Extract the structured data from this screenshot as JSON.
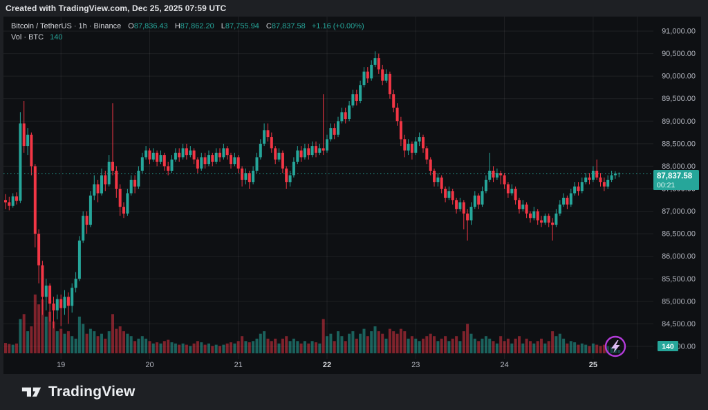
{
  "topbar": {
    "attribution": "Created with TradingView.com, Dec 25, 2025 07:59 UTC"
  },
  "legend": {
    "symbol": "Bitcoin / TetherUS",
    "interval": "1h",
    "exchange": "Binance",
    "separator": "·",
    "o_label": "O",
    "o_value": "87,836.43",
    "h_label": "H",
    "h_value": "87,862.20",
    "l_label": "L",
    "l_value": "87,755.94",
    "c_label": "C",
    "c_value": "87,837.58",
    "change": "+1.16 (+0.00%)",
    "volume_label": "Vol · BTC",
    "volume_value": "140"
  },
  "last_price": {
    "value": "87,837.58",
    "countdown": "00:21",
    "price": 87837.58
  },
  "volume_badge": {
    "value": "140"
  },
  "footer": {
    "brand": "TradingView"
  },
  "colors": {
    "up": "#26a69a",
    "down": "#f23645",
    "vol_up": "rgba(38,166,154,0.55)",
    "vol_down": "rgba(242,54,69,0.50)",
    "grid": "rgba(255,255,255,0.07)",
    "axis_text": "#b2b5be",
    "axis_text_emphasis": "#d8dade",
    "badge_teal": "#26a69a",
    "flash_purple": "#b43bda",
    "flash_bolt": "#dcbcf2",
    "panel_bg": "#0e1013",
    "outer_bg": "#1e2024"
  },
  "chart_data": {
    "type": "candlestick",
    "title": "Bitcoin / TetherUS · 1h · Binance",
    "interval": "1h",
    "start": "Dec 18 09:00 UTC",
    "ylim": [
      84000,
      91000
    ],
    "price_axis_labels": [
      "91,000.00",
      "90,500.00",
      "90,000.00",
      "89,500.00",
      "89,000.00",
      "88,500.00",
      "88,000.00",
      "87,500.00",
      "87,000.00",
      "86,500.00",
      "86,000.00",
      "85,500.00",
      "85,000.00",
      "84,500.00",
      "84,000.00"
    ],
    "price_axis_values": [
      91000,
      90500,
      90000,
      89500,
      89000,
      88500,
      88000,
      87500,
      87000,
      86500,
      86000,
      85500,
      85000,
      84500,
      84000
    ],
    "time_axis": [
      {
        "label": "19",
        "index": 15,
        "emphasis": false
      },
      {
        "label": "20",
        "index": 39,
        "emphasis": false
      },
      {
        "label": "21",
        "index": 63,
        "emphasis": false
      },
      {
        "label": "22",
        "index": 87,
        "emphasis": true
      },
      {
        "label": "23",
        "index": 111,
        "emphasis": false
      },
      {
        "label": "24",
        "index": 135,
        "emphasis": false
      },
      {
        "label": "25",
        "index": 159,
        "emphasis": true
      }
    ],
    "future_grid_index": 171,
    "volume_max": 2400,
    "candles_format": [
      "open",
      "high",
      "low",
      "close",
      "volume_btc"
    ],
    "candles": [
      [
        87250,
        87380,
        87050,
        87200,
        420
      ],
      [
        87200,
        87320,
        87020,
        87120,
        380
      ],
      [
        87120,
        87400,
        87080,
        87330,
        350
      ],
      [
        87330,
        87420,
        87150,
        87230,
        400
      ],
      [
        87230,
        89200,
        87180,
        88950,
        1400
      ],
      [
        88950,
        89450,
        88300,
        88450,
        1600
      ],
      [
        88450,
        88850,
        88250,
        88700,
        900
      ],
      [
        88700,
        88750,
        87800,
        88000,
        1100
      ],
      [
        88000,
        88050,
        86200,
        86500,
        2400
      ],
      [
        86500,
        86600,
        85400,
        85800,
        2000
      ],
      [
        85800,
        85900,
        84700,
        85100,
        2200
      ],
      [
        85100,
        85500,
        84800,
        85350,
        1500
      ],
      [
        85350,
        85400,
        84550,
        84950,
        1700
      ],
      [
        84950,
        85100,
        84400,
        84800,
        1300
      ],
      [
        84800,
        85150,
        84600,
        85050,
        900
      ],
      [
        85050,
        85150,
        84450,
        84850,
        1000
      ],
      [
        84850,
        85250,
        84700,
        85100,
        800
      ],
      [
        85100,
        85200,
        84500,
        84900,
        900
      ],
      [
        84900,
        85400,
        84750,
        85300,
        700
      ],
      [
        85300,
        85650,
        85200,
        85500,
        600
      ],
      [
        85500,
        86450,
        85450,
        86350,
        1500
      ],
      [
        86350,
        87000,
        86300,
        86900,
        1200
      ],
      [
        86900,
        87000,
        86500,
        86700,
        800
      ],
      [
        86700,
        87450,
        86650,
        87350,
        1000
      ],
      [
        87350,
        87800,
        87250,
        87600,
        900
      ],
      [
        87600,
        87700,
        87200,
        87400,
        700
      ],
      [
        87400,
        87950,
        87350,
        87800,
        800
      ],
      [
        87800,
        87900,
        87450,
        87600,
        600
      ],
      [
        87600,
        88250,
        87550,
        88100,
        900
      ],
      [
        88100,
        89400,
        87800,
        87900,
        1600
      ],
      [
        87900,
        88000,
        87300,
        87500,
        1000
      ],
      [
        87500,
        87600,
        86900,
        87100,
        1100
      ],
      [
        87100,
        87200,
        86850,
        86950,
        900
      ],
      [
        86950,
        87500,
        86900,
        87400,
        800
      ],
      [
        87400,
        87800,
        87350,
        87700,
        700
      ],
      [
        87700,
        87800,
        87400,
        87550,
        500
      ],
      [
        87550,
        88000,
        87500,
        87900,
        600
      ],
      [
        87900,
        88300,
        87850,
        88200,
        700
      ],
      [
        88200,
        88450,
        88150,
        88350,
        600
      ],
      [
        88350,
        88400,
        88050,
        88150,
        500
      ],
      [
        88150,
        88400,
        88100,
        88300,
        400
      ],
      [
        88300,
        88350,
        88000,
        88100,
        450
      ],
      [
        88100,
        88350,
        88050,
        88250,
        400
      ],
      [
        88250,
        88300,
        87900,
        88000,
        500
      ],
      [
        88000,
        88100,
        87800,
        87900,
        550
      ],
      [
        87900,
        88250,
        87850,
        88150,
        450
      ],
      [
        88150,
        88400,
        88100,
        88300,
        400
      ],
      [
        88300,
        88400,
        88100,
        88200,
        350
      ],
      [
        88200,
        88500,
        88150,
        88400,
        400
      ],
      [
        88400,
        88500,
        88150,
        88250,
        350
      ],
      [
        88250,
        88450,
        88200,
        88350,
        300
      ],
      [
        88350,
        88400,
        88050,
        88150,
        400
      ],
      [
        88150,
        88200,
        87850,
        87950,
        500
      ],
      [
        87950,
        88300,
        87900,
        88200,
        450
      ],
      [
        88200,
        88300,
        87950,
        88050,
        350
      ],
      [
        88050,
        88350,
        88000,
        88250,
        400
      ],
      [
        88250,
        88300,
        88000,
        88100,
        300
      ],
      [
        88100,
        88400,
        88050,
        88300,
        350
      ],
      [
        88300,
        88400,
        88100,
        88200,
        300
      ],
      [
        88200,
        88500,
        88150,
        88400,
        350
      ],
      [
        88400,
        88450,
        88150,
        88250,
        400
      ],
      [
        88250,
        88300,
        87950,
        88050,
        450
      ],
      [
        88050,
        88300,
        88000,
        88200,
        400
      ],
      [
        88200,
        88250,
        87850,
        87950,
        500
      ],
      [
        87950,
        88000,
        87550,
        87700,
        700
      ],
      [
        87700,
        87950,
        87600,
        87850,
        500
      ],
      [
        87850,
        87900,
        87500,
        87650,
        450
      ],
      [
        87650,
        88000,
        87600,
        87900,
        500
      ],
      [
        87900,
        88300,
        87850,
        88200,
        600
      ],
      [
        88200,
        88600,
        88150,
        88500,
        800
      ],
      [
        88500,
        88950,
        88450,
        88800,
        900
      ],
      [
        88800,
        88950,
        88550,
        88650,
        600
      ],
      [
        88650,
        88750,
        88300,
        88400,
        500
      ],
      [
        88400,
        88450,
        88050,
        88150,
        600
      ],
      [
        88150,
        88400,
        88100,
        88300,
        400
      ],
      [
        88300,
        88350,
        87850,
        87950,
        600
      ],
      [
        87950,
        88000,
        87500,
        87650,
        700
      ],
      [
        87650,
        87900,
        87550,
        87800,
        500
      ],
      [
        87800,
        88200,
        87750,
        88100,
        600
      ],
      [
        88100,
        88450,
        88050,
        88350,
        500
      ],
      [
        88350,
        88450,
        88100,
        88200,
        400
      ],
      [
        88200,
        88500,
        88150,
        88400,
        500
      ],
      [
        88400,
        88500,
        88150,
        88250,
        400
      ],
      [
        88250,
        88550,
        88200,
        88450,
        500
      ],
      [
        88450,
        88550,
        88200,
        88300,
        450
      ],
      [
        88300,
        88500,
        88250,
        88400,
        400
      ],
      [
        88400,
        89600,
        88250,
        88350,
        1400
      ],
      [
        88350,
        88700,
        88300,
        88600,
        700
      ],
      [
        88600,
        88950,
        88550,
        88850,
        800
      ],
      [
        88850,
        88950,
        88600,
        88700,
        500
      ],
      [
        88700,
        89100,
        88650,
        89000,
        900
      ],
      [
        89000,
        89300,
        88950,
        89200,
        700
      ],
      [
        89200,
        89300,
        88950,
        89050,
        500
      ],
      [
        89050,
        89450,
        89000,
        89350,
        800
      ],
      [
        89350,
        89700,
        89300,
        89600,
        900
      ],
      [
        89600,
        89700,
        89350,
        89450,
        600
      ],
      [
        89450,
        89900,
        89400,
        89800,
        800
      ],
      [
        89800,
        90200,
        89750,
        90100,
        1000
      ],
      [
        90100,
        90200,
        89850,
        89950,
        700
      ],
      [
        89950,
        90350,
        89900,
        90250,
        900
      ],
      [
        90250,
        90550,
        90200,
        90400,
        1100
      ],
      [
        90400,
        90500,
        90050,
        90150,
        900
      ],
      [
        90150,
        90250,
        89800,
        89900,
        800
      ],
      [
        89900,
        90150,
        89850,
        90050,
        600
      ],
      [
        90050,
        90100,
        89500,
        89600,
        1000
      ],
      [
        89600,
        89700,
        89200,
        89300,
        900
      ],
      [
        89300,
        89400,
        88900,
        89000,
        800
      ],
      [
        89000,
        89100,
        88450,
        88600,
        1000
      ],
      [
        88600,
        88700,
        88200,
        88350,
        900
      ],
      [
        88350,
        88600,
        88250,
        88500,
        600
      ],
      [
        88500,
        88550,
        88150,
        88300,
        700
      ],
      [
        88300,
        88650,
        88250,
        88550,
        600
      ],
      [
        88550,
        88750,
        88450,
        88650,
        500
      ],
      [
        88650,
        88700,
        88300,
        88400,
        600
      ],
      [
        88400,
        88450,
        88050,
        88150,
        700
      ],
      [
        88150,
        88200,
        87800,
        87900,
        800
      ],
      [
        87900,
        87950,
        87550,
        87650,
        700
      ],
      [
        87650,
        87850,
        87550,
        87750,
        500
      ],
      [
        87750,
        87800,
        87400,
        87500,
        600
      ],
      [
        87500,
        87550,
        87200,
        87300,
        700
      ],
      [
        87300,
        87550,
        87250,
        87450,
        500
      ],
      [
        87450,
        87500,
        87150,
        87250,
        600
      ],
      [
        87250,
        87300,
        86950,
        87050,
        700
      ],
      [
        87050,
        87300,
        87000,
        87200,
        500
      ],
      [
        87200,
        87250,
        86600,
        86950,
        900
      ],
      [
        86950,
        87050,
        86350,
        86800,
        1200
      ],
      [
        86800,
        87200,
        86700,
        87100,
        800
      ],
      [
        87100,
        87450,
        87050,
        87350,
        600
      ],
      [
        87350,
        87400,
        87050,
        87150,
        500
      ],
      [
        87150,
        87550,
        87100,
        87450,
        600
      ],
      [
        87450,
        87800,
        87400,
        87700,
        700
      ],
      [
        87700,
        88300,
        87650,
        87900,
        600
      ],
      [
        87900,
        88000,
        87650,
        87750,
        500
      ],
      [
        87750,
        87950,
        87700,
        87850,
        400
      ],
      [
        87850,
        87900,
        87600,
        87800,
        700
      ],
      [
        87800,
        87850,
        87500,
        87600,
        500
      ],
      [
        87600,
        87650,
        87300,
        87400,
        600
      ],
      [
        87400,
        87600,
        87350,
        87500,
        400
      ],
      [
        87500,
        87550,
        87150,
        87250,
        600
      ],
      [
        87250,
        87300,
        86950,
        87050,
        700
      ],
      [
        87050,
        87250,
        87000,
        87150,
        400
      ],
      [
        87150,
        87200,
        86850,
        86950,
        600
      ],
      [
        86950,
        87000,
        86750,
        86850,
        500
      ],
      [
        86850,
        87100,
        86800,
        87000,
        400
      ],
      [
        87000,
        87050,
        86700,
        86800,
        500
      ],
      [
        86800,
        86900,
        86650,
        86750,
        600
      ],
      [
        86750,
        86950,
        86700,
        86900,
        400
      ],
      [
        86900,
        86950,
        86650,
        86750,
        500
      ],
      [
        86750,
        86850,
        86350,
        86700,
        900
      ],
      [
        86700,
        87050,
        86650,
        86950,
        700
      ],
      [
        86950,
        87250,
        86900,
        87150,
        800
      ],
      [
        87150,
        87400,
        87100,
        87300,
        600
      ],
      [
        87300,
        87350,
        87050,
        87150,
        400
      ],
      [
        87150,
        87500,
        87100,
        87400,
        500
      ],
      [
        87400,
        87650,
        87350,
        87550,
        450
      ],
      [
        87550,
        87650,
        87350,
        87450,
        350
      ],
      [
        87450,
        87750,
        87400,
        87650,
        400
      ],
      [
        87650,
        87850,
        87600,
        87750,
        350
      ],
      [
        87750,
        87850,
        87600,
        87700,
        300
      ],
      [
        87700,
        88000,
        87650,
        87900,
        400
      ],
      [
        87900,
        88150,
        87700,
        87750,
        350
      ],
      [
        87750,
        87850,
        87550,
        87650,
        300
      ],
      [
        87650,
        87750,
        87450,
        87550,
        350
      ],
      [
        87550,
        87800,
        87500,
        87700,
        300
      ],
      [
        87700,
        87900,
        87650,
        87800,
        250
      ],
      [
        87800,
        87890,
        87720,
        87836,
        200
      ],
      [
        87836.43,
        87862.2,
        87755.94,
        87837.58,
        140
      ]
    ]
  }
}
